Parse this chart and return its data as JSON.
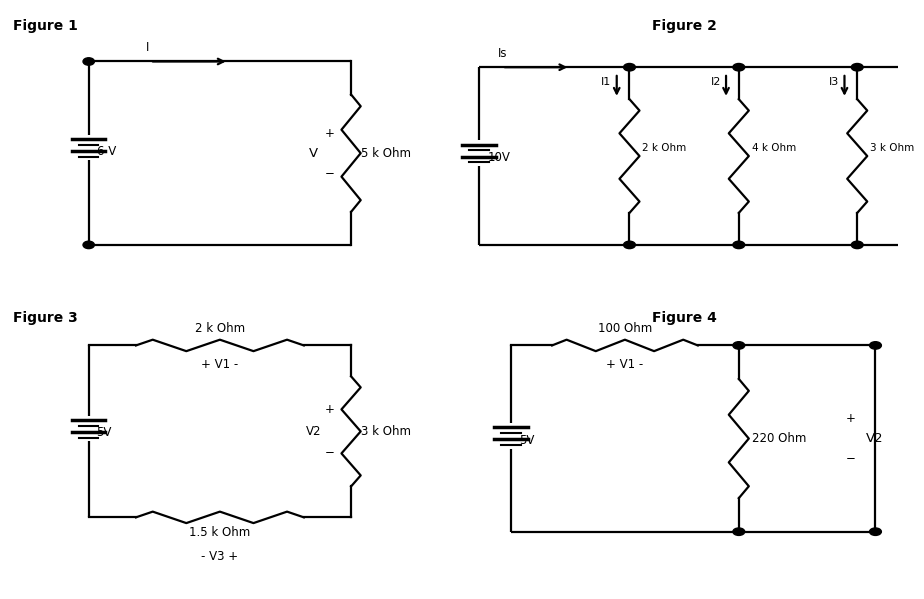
{
  "fig1": {
    "title": "Figure 1",
    "battery_label": "6 V",
    "resistor_label": "5 k Ohm",
    "voltage_label": "V",
    "current_label": "I"
  },
  "fig2": {
    "title": "Figure 2",
    "battery_label": "10V",
    "resistor_labels": [
      "2 k Ohm",
      "4 k Ohm",
      "3 k Ohm"
    ],
    "current_labels": [
      "I1",
      "I2",
      "I3"
    ],
    "source_current": "Is"
  },
  "fig3": {
    "title": "Figure 3",
    "battery_label": "5V",
    "resistor_top": "2 k Ohm",
    "resistor_right": "3 k Ohm",
    "resistor_bot": "1.5 k Ohm",
    "v1_label": "+ V1 -",
    "v2_label": "V2",
    "v3_label": "- V3 +"
  },
  "fig4": {
    "title": "Figure 4",
    "battery_label": "5V",
    "resistor_top": "100 Ohm",
    "resistor_right": "220 Ohm",
    "v1_label": "+ V1 -",
    "v2_label": "V2"
  },
  "bg_color": "#ffffff",
  "line_color": "#000000",
  "text_color": "#000000",
  "font_size": 8.5,
  "title_font_size": 10
}
